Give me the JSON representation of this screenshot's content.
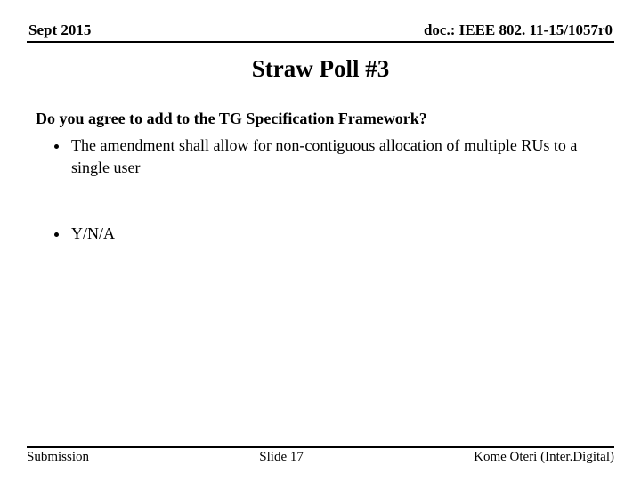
{
  "header": {
    "left": "Sept 2015",
    "right": "doc.: IEEE 802. 11-15/1057r0"
  },
  "title": "Straw Poll #3",
  "content": {
    "question": "Do you agree to add to the TG Specification Framework?",
    "bullets_a": [
      "The amendment shall allow for non-contiguous allocation of multiple RUs to a single user"
    ],
    "bullets_b": [
      "Y/N/A"
    ]
  },
  "footer": {
    "left": "Submission",
    "center": "Slide 17",
    "right": "Kome Oteri (Inter.Digital)"
  },
  "colors": {
    "text": "#000000",
    "background": "#ffffff",
    "rule": "#000000"
  },
  "typography": {
    "family": "Times New Roman",
    "header_fontsize": 17,
    "title_fontsize": 27,
    "body_fontsize": 18,
    "footer_fontsize": 15
  }
}
